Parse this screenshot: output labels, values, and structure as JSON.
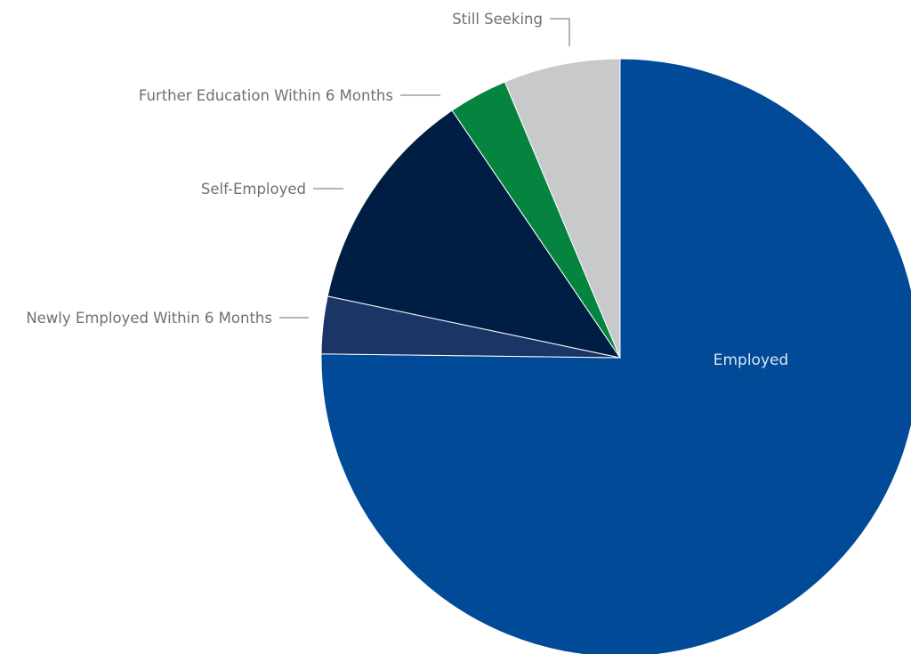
{
  "chart_data": {
    "type": "pie",
    "slices": [
      {
        "label": "Employed",
        "value": 75.2,
        "color": "#004a98",
        "label_placement": "inside"
      },
      {
        "label": "Newly Employed Within 6 Months",
        "value": 3.1,
        "color": "#1b3567",
        "label_placement": "outside-left"
      },
      {
        "label": "Self-Employed",
        "value": 12.2,
        "color": "#001e44",
        "label_placement": "outside-left"
      },
      {
        "label": "Further Education Within 6 Months",
        "value": 3.2,
        "color": "#05843f",
        "label_placement": "outside-left"
      },
      {
        "label": "Still Seeking",
        "value": 6.3,
        "color": "#c8c9cb",
        "label_placement": "outside-top"
      }
    ],
    "start": "12 o'clock",
    "direction": "clockwise",
    "legend": "none"
  }
}
